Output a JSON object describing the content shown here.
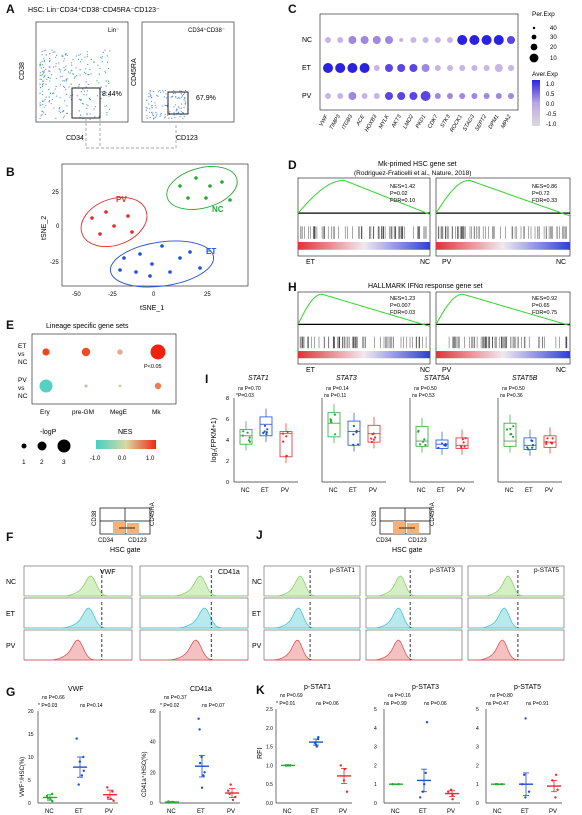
{
  "letters": {
    "A": "A",
    "B": "B",
    "C": "C",
    "D": "D",
    "E": "E",
    "F": "F",
    "G": "G",
    "H": "H",
    "I": "I",
    "J": "J",
    "K": "K"
  },
  "panelA": {
    "title": "HSC: Lin⁻CD34⁺CD38⁻CD45RA⁻CD123⁻",
    "plot1_tag": "Lin⁻",
    "plot1_pct": "8.44%",
    "plot1_x": "CD34",
    "plot1_y": "CD38",
    "plot2_tag": "CD34⁺CD38⁻",
    "plot2_pct": "67.9%",
    "plot2_x": "CD123",
    "plot2_y": "CD45RA"
  },
  "panelB": {
    "xlabel": "tSNE_1",
    "ylabel": "tSNE_2",
    "groups": [
      {
        "name": "PV",
        "color": "#e32b2b"
      },
      {
        "name": "NC",
        "color": "#2aa836"
      },
      {
        "name": "ET",
        "color": "#1f4fd6"
      }
    ],
    "x_ticks": [
      "-50",
      "-25",
      "0",
      "25"
    ],
    "y_ticks": [
      "25",
      "0",
      "-25"
    ]
  },
  "panelC": {
    "rows": [
      "NC",
      "ET",
      "PV"
    ],
    "genes": [
      "VWF",
      "TIMP3",
      "ITGB3",
      "ACE",
      "HOXB3",
      "MYLK",
      "AKT3",
      "LMO2",
      "PKD1",
      "CDK7",
      "STK3",
      "ROCK1",
      "STAG3",
      "SEPT2",
      "DPM1",
      "MPA2"
    ],
    "legend_size_title": "Per.Exp",
    "legend_sizes": [
      "40",
      "30",
      "20",
      "10"
    ],
    "legend_color_title": "Aver.Exp",
    "legend_colors": [
      "1.0",
      "0.5",
      "0.0",
      "-0.5",
      "-1.0"
    ]
  },
  "panelD": {
    "title1": "Mk-primed HSC gene set",
    "title2": "(Rodriguez-Fraticelli et al., Nature, 2018)",
    "left_stats": [
      "NES=1.42",
      "P=0.02",
      "FDR=0.10"
    ],
    "right_stats": [
      "NES=0.86",
      "P=0.72",
      "FDR=0.33"
    ],
    "left_ends": [
      "ET",
      "NC"
    ],
    "right_ends": [
      "PV",
      "NC"
    ]
  },
  "panelE": {
    "title": "Lineage specific gene sets",
    "rows": [
      "ET\nvs\nNC",
      "PV\nvs\nNC"
    ],
    "row1": "ET",
    "row1b": "vs",
    "row1c": "NC",
    "row2": "PV",
    "row2b": "vs",
    "row2c": "NC",
    "cols": [
      "Ery",
      "pre-GM",
      "MegE",
      "Mk"
    ],
    "pnote": "P<0.05",
    "logp_title": "-logP",
    "logp_ticks": [
      "1",
      "2",
      "3"
    ],
    "nes_title": "NES",
    "nes_ticks": [
      "-1.0",
      "0.0",
      "1.0"
    ]
  },
  "panelH": {
    "title": "HALLMARK IFNα response gene set",
    "left_stats": [
      "NES=1.23",
      "P=0.007",
      "FDR=0.03"
    ],
    "right_stats": [
      "NES=0.92",
      "P=0.65",
      "FDR=0.75"
    ],
    "left_ends": [
      "ET",
      "NC"
    ],
    "right_ends": [
      "PV",
      "NC"
    ]
  },
  "panelI": {
    "ylabel": "log₂(FPKM+1)",
    "plots": [
      {
        "gene": "STAT1",
        "p_top": "ns P=0.70",
        "p_low": "*P=0.03"
      },
      {
        "gene": "STAT3",
        "p_top": "ns P=0.14",
        "p_low": "ns P=0.11"
      },
      {
        "gene": "STAT5A",
        "p_top": "ns P=0.50",
        "p_low": "ns P=0.53"
      },
      {
        "gene": "STAT5B",
        "p_top": "ns P=0.50",
        "p_low": "ns P=0.36"
      }
    ],
    "groups": [
      "NC",
      "ET",
      "PV"
    ],
    "y_ticks": [
      "8",
      "6",
      "4",
      "2",
      "0"
    ]
  },
  "panelF": {
    "gate_label": "HSC gate",
    "gate_x": "CD34",
    "gate_x2": "CD123",
    "gate_y": "CD38",
    "gate_y2": "CD45RA",
    "rows": [
      "NC",
      "ET",
      "PV"
    ],
    "markers": [
      "VWF",
      "CD41a"
    ]
  },
  "panelJ": {
    "gate_label": "HSC gate",
    "gate_x": "CD34",
    "gate_x2": "CD123",
    "gate_y": "CD38",
    "gate_y2": "CD45RA",
    "rows": [
      "NC",
      "ET",
      "PV"
    ],
    "markers": [
      "p-STAT1",
      "p-STAT3",
      "p-STAT5"
    ]
  },
  "panelG": {
    "plots": [
      {
        "title": "VWF",
        "ylabel": "VWF⁺/HSC(%)",
        "p_top": "ns P=0.66",
        "p_l": "* P=0.03",
        "p_r": "ns P=0.14",
        "y_ticks": [
          "20",
          "15",
          "10",
          "5",
          "0"
        ]
      },
      {
        "title": "CD41a",
        "ylabel": "CD41a⁺/HSC(%)",
        "p_top": "ns P=0.37",
        "p_l": "* P=0.02",
        "p_r": "ns P=0.07",
        "y_ticks": [
          "60",
          "40",
          "20",
          "0"
        ]
      }
    ],
    "groups": [
      "NC",
      "ET",
      "PV"
    ]
  },
  "panelK": {
    "ylabel": "RFI",
    "plots": [
      {
        "title": "p-STAT1",
        "p_top": "ns P=0.69",
        "p_l": "* P=0.01",
        "p_r": "ns P=0.06",
        "y_ticks": [
          "2.5",
          "2.0",
          "1.5",
          "1.0",
          "0.5",
          "0.0"
        ]
      },
      {
        "title": "p-STAT3",
        "p_top": "ns P=0.16",
        "p_l": "ns P=0.99",
        "p_r": "ns P=0.06",
        "y_ticks": [
          "5",
          "4",
          "3",
          "2",
          "1",
          "0"
        ]
      },
      {
        "title": "p-STAT5",
        "p_top": "ns P=0.80",
        "p_l": "ns P=0.47",
        "p_r": "ns P=0.91",
        "y_ticks": [
          "5",
          "4",
          "3",
          "2",
          "1",
          "0"
        ]
      }
    ],
    "groups": [
      "NC",
      "ET",
      "PV"
    ]
  }
}
